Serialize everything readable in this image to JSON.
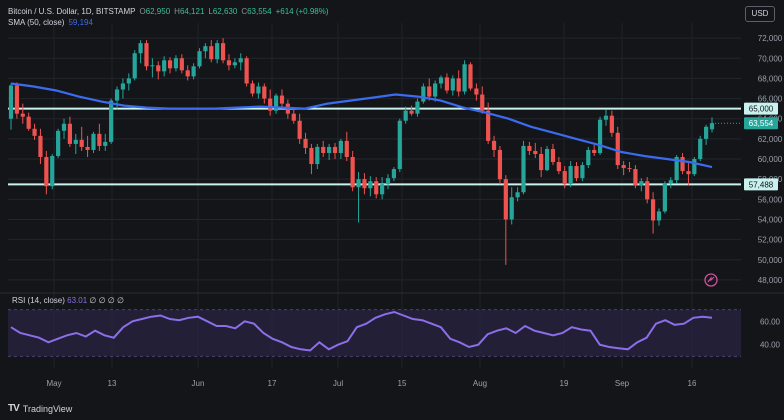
{
  "header": {
    "symbol": "Bitcoin / U.S. Dollar, 1D, BITSTAMP",
    "open_k": "O",
    "open_v": "62,950",
    "high_k": "H",
    "high_v": "64,121",
    "low_k": "L",
    "low_v": "62,630",
    "close_k": "C",
    "close_v": "63,554",
    "change": "+614 (+0.98%)",
    "sma_label": "SMA (50, close)",
    "sma_value": "59,194"
  },
  "currency_button": "USD",
  "rsi": {
    "label": "RSI (14, close)",
    "value": "63.01",
    "placeholders": "∅ ∅ ∅ ∅"
  },
  "brand": {
    "logo": "TV",
    "name": "TradingView"
  },
  "colors": {
    "bull": "#26a69a",
    "bear": "#ef5350",
    "sma": "#3b6cf0",
    "rsi": "#8c6ee8",
    "level": "#c9f2ee"
  },
  "icons": {
    "alert": "alert-clock-icon"
  },
  "chart_data": {
    "type": "candlestick",
    "title": "Bitcoin / U.S. Dollar, 1D, BITSTAMP",
    "price_axis": {
      "ticks": [
        "72,000",
        "70,000",
        "68,000",
        "66,000",
        "64,000",
        "62,000",
        "60,000",
        "58,000",
        "56,000",
        "54,000",
        "52,000",
        "50,000",
        "48,000"
      ],
      "ylim": [
        47000,
        73500
      ]
    },
    "time_axis": [
      "May",
      "13",
      "Jun",
      "17",
      "Jul",
      "15",
      "Aug",
      "19",
      "Sep",
      "16"
    ],
    "levels": [
      {
        "label": "65,000",
        "value": 65000
      },
      {
        "label": "57,488",
        "value": 57488
      }
    ],
    "last_price": {
      "label": "63,554",
      "value": 63554
    },
    "series": [
      {
        "name": "Bitcoin / U.S. Dollar",
        "values": [
          [
            64000,
            67500,
            62900,
            67300
          ],
          [
            67300,
            67600,
            64000,
            64500
          ],
          [
            64500,
            65500,
            63500,
            64200
          ],
          [
            64200,
            64600,
            62800,
            63000
          ],
          [
            63000,
            63500,
            61900,
            62300
          ],
          [
            62300,
            63000,
            59500,
            60200
          ],
          [
            60200,
            60800,
            56500,
            57300
          ],
          [
            57300,
            60500,
            57000,
            60300
          ],
          [
            60300,
            63000,
            60100,
            62800
          ],
          [
            62800,
            64000,
            62000,
            63500
          ],
          [
            63500,
            64200,
            61200,
            61500
          ],
          [
            61500,
            62500,
            60500,
            61900
          ],
          [
            61900,
            63200,
            60800,
            61200
          ],
          [
            61200,
            62300,
            60200,
            60900
          ],
          [
            60900,
            62700,
            60600,
            62500
          ],
          [
            62500,
            63500,
            60800,
            61300
          ],
          [
            61300,
            62500,
            60800,
            61700
          ],
          [
            61700,
            66000,
            61500,
            65800
          ],
          [
            65800,
            67200,
            65000,
            66900
          ],
          [
            66900,
            68000,
            66000,
            67500
          ],
          [
            67500,
            68500,
            66800,
            68000
          ],
          [
            68000,
            70800,
            67800,
            70500
          ],
          [
            70500,
            71800,
            69500,
            71500
          ],
          [
            71500,
            71800,
            68800,
            69200
          ],
          [
            69200,
            70000,
            68100,
            69300
          ],
          [
            69300,
            69700,
            67900,
            68700
          ],
          [
            68700,
            70200,
            68200,
            69800
          ],
          [
            69800,
            70100,
            68500,
            69000
          ],
          [
            69000,
            70300,
            68700,
            70000
          ],
          [
            70000,
            70400,
            68500,
            68800
          ],
          [
            68800,
            69300,
            67800,
            68200
          ],
          [
            68200,
            69500,
            67900,
            69200
          ],
          [
            69200,
            71000,
            69000,
            70700
          ],
          [
            70700,
            71500,
            70000,
            71200
          ],
          [
            71200,
            71800,
            69600,
            69900
          ],
          [
            69900,
            71800,
            69500,
            71500
          ],
          [
            71500,
            72000,
            69500,
            69800
          ],
          [
            69800,
            70400,
            68800,
            69300
          ],
          [
            69300,
            70000,
            69000,
            69600
          ],
          [
            69600,
            70500,
            68800,
            70000
          ],
          [
            70000,
            70200,
            67200,
            67500
          ],
          [
            67500,
            67800,
            66200,
            66500
          ],
          [
            66500,
            67600,
            66000,
            67200
          ],
          [
            67200,
            67500,
            65500,
            66000
          ],
          [
            66000,
            66900,
            64300,
            64800
          ],
          [
            64800,
            66500,
            64500,
            66300
          ],
          [
            66300,
            66900,
            65100,
            65500
          ],
          [
            65500,
            65900,
            64000,
            64500
          ],
          [
            64500,
            65000,
            63500,
            63800
          ],
          [
            63800,
            64500,
            61500,
            62000
          ],
          [
            62000,
            62600,
            60500,
            61100
          ],
          [
            61100,
            61500,
            58500,
            59500
          ],
          [
            59500,
            61500,
            59000,
            61200
          ],
          [
            61200,
            61800,
            60200,
            60600
          ],
          [
            60600,
            61500,
            59900,
            61200
          ],
          [
            61200,
            61600,
            60000,
            60600
          ],
          [
            60600,
            62000,
            60000,
            61800
          ],
          [
            61800,
            62700,
            59800,
            60200
          ],
          [
            60200,
            60800,
            56800,
            57200
          ],
          [
            57200,
            58700,
            53700,
            58000
          ],
          [
            58000,
            58600,
            56500,
            57100
          ],
          [
            57100,
            58300,
            56300,
            57800
          ],
          [
            57800,
            58200,
            56100,
            56500
          ],
          [
            56500,
            58200,
            56000,
            57500
          ],
          [
            57500,
            58500,
            57000,
            58100
          ],
          [
            58100,
            59200,
            57800,
            59000
          ],
          [
            59000,
            64000,
            58700,
            63800
          ],
          [
            63800,
            65200,
            63500,
            64800
          ],
          [
            64800,
            65300,
            64300,
            64500
          ],
          [
            64500,
            66000,
            64200,
            65700
          ],
          [
            65700,
            67500,
            65500,
            67200
          ],
          [
            67200,
            68000,
            65800,
            66200
          ],
          [
            66200,
            67800,
            65700,
            67500
          ],
          [
            67500,
            68300,
            67000,
            68100
          ],
          [
            68100,
            68500,
            66500,
            66800
          ],
          [
            66800,
            68300,
            66300,
            68000
          ],
          [
            68000,
            68800,
            66200,
            66700
          ],
          [
            66700,
            69800,
            66400,
            69400
          ],
          [
            69400,
            69600,
            66800,
            67000
          ],
          [
            67000,
            67500,
            65800,
            66400
          ],
          [
            66400,
            67200,
            64500,
            64800
          ],
          [
            64800,
            65600,
            61500,
            61800
          ],
          [
            61800,
            62300,
            60200,
            60900
          ],
          [
            60900,
            61300,
            57500,
            58000
          ],
          [
            58000,
            58400,
            49500,
            54000
          ],
          [
            54000,
            57200,
            53500,
            56200
          ],
          [
            56200,
            57200,
            55800,
            56700
          ],
          [
            56700,
            61800,
            56500,
            61300
          ],
          [
            61300,
            61700,
            60400,
            60800
          ],
          [
            60800,
            61600,
            60100,
            60500
          ],
          [
            60500,
            61200,
            58200,
            58900
          ],
          [
            58900,
            61300,
            58800,
            61000
          ],
          [
            61000,
            61500,
            59400,
            59700
          ],
          [
            59700,
            60200,
            58500,
            58800
          ],
          [
            58800,
            59300,
            57100,
            57500
          ],
          [
            57500,
            59800,
            57200,
            59300
          ],
          [
            59300,
            59700,
            57800,
            58100
          ],
          [
            58100,
            59700,
            57800,
            59400
          ],
          [
            59400,
            61200,
            59100,
            60900
          ],
          [
            60900,
            61400,
            60300,
            60600
          ],
          [
            60600,
            64200,
            60400,
            63900
          ],
          [
            63900,
            64900,
            63300,
            64300
          ],
          [
            64300,
            64800,
            62200,
            62600
          ],
          [
            62600,
            63200,
            59000,
            59400
          ],
          [
            59400,
            59800,
            58400,
            59100
          ],
          [
            59100,
            59700,
            58700,
            59000
          ],
          [
            59000,
            59400,
            57100,
            57400
          ],
          [
            57400,
            58100,
            56800,
            57800
          ],
          [
            57800,
            58200,
            55600,
            56000
          ],
          [
            56000,
            56700,
            52600,
            53900
          ],
          [
            53900,
            55100,
            53400,
            54800
          ],
          [
            54800,
            57800,
            54600,
            57600
          ],
          [
            57600,
            58200,
            57100,
            57900
          ],
          [
            57900,
            60400,
            57600,
            60200
          ],
          [
            60200,
            60600,
            58500,
            58800
          ],
          [
            58800,
            59600,
            57400,
            58500
          ],
          [
            58500,
            60200,
            58300,
            60000
          ],
          [
            60000,
            62300,
            59800,
            62000
          ],
          [
            62000,
            63400,
            61400,
            63200
          ],
          [
            62950,
            64121,
            62630,
            63554
          ]
        ]
      },
      {
        "name": "SMA (50, close)",
        "values": [
          67500,
          67200,
          66800,
          66200,
          65700,
          65300,
          65100,
          65000,
          65000,
          65000,
          65100,
          65200,
          65100,
          65000,
          65500,
          65800,
          66100,
          66400,
          66200,
          65800,
          65100,
          64600,
          64000,
          63200,
          62600,
          62000,
          61400,
          60700,
          60300,
          60000,
          59700,
          59200
        ]
      }
    ],
    "rsi": {
      "ticks": [
        "60.00",
        "40.00"
      ],
      "ylim": [
        20,
        80
      ],
      "values": [
        55,
        50,
        48,
        46,
        42,
        45,
        48,
        50,
        47,
        52,
        48,
        46,
        55,
        60,
        62,
        64,
        65,
        62,
        61,
        63,
        64,
        60,
        56,
        56,
        54,
        60,
        58,
        50,
        45,
        42,
        38,
        36,
        35,
        42,
        36,
        40,
        43,
        55,
        58,
        63,
        66,
        68,
        65,
        62,
        61,
        58,
        55,
        45,
        42,
        38,
        40,
        49,
        52,
        54,
        50,
        56,
        52,
        50,
        48,
        50,
        55,
        53,
        52,
        40,
        38,
        37,
        36,
        42,
        46,
        58,
        61,
        57,
        58,
        63,
        64,
        63
      ]
    }
  }
}
